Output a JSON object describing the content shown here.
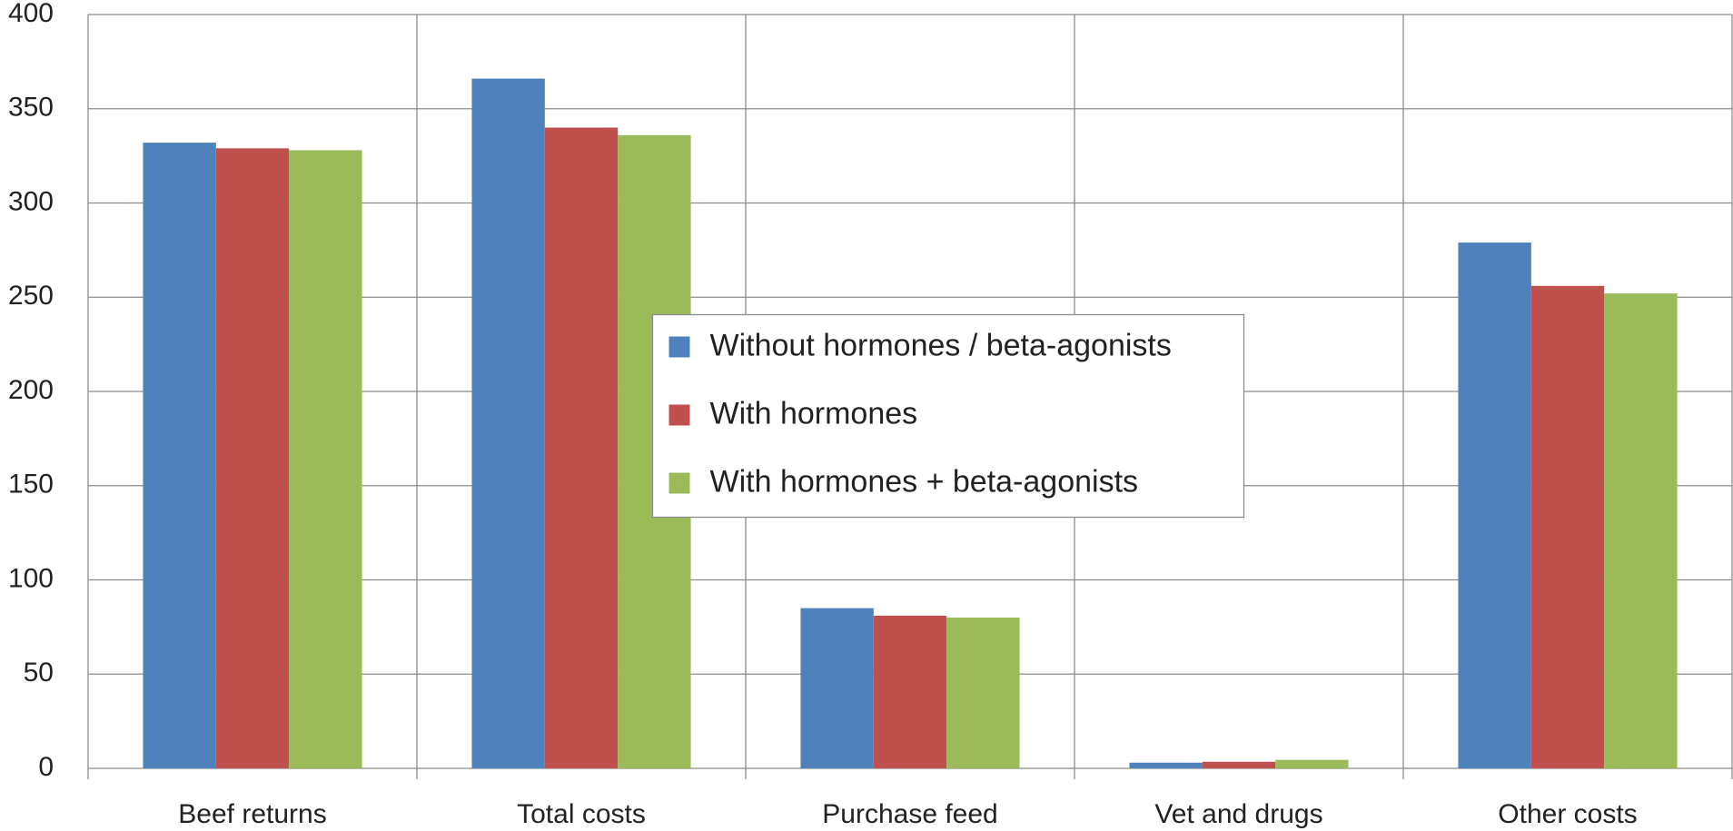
{
  "chart_data": {
    "type": "bar",
    "categories": [
      "Beef returns",
      "Total costs",
      "Purchase feed",
      "Vet and drugs",
      "Other costs"
    ],
    "series": [
      {
        "name": "Without hormones / beta-agonists",
        "color": "#4f81bd",
        "values": [
          332,
          366,
          85,
          3,
          279
        ]
      },
      {
        "name": "With hormones",
        "color": "#c0504d",
        "values": [
          329,
          340,
          81,
          3.5,
          256
        ]
      },
      {
        "name": "With hormones + beta-agonists",
        "color": "#9bbb59",
        "values": [
          328,
          336,
          80,
          4.5,
          252
        ]
      }
    ],
    "ylim": [
      0,
      400
    ],
    "yticks": [
      0,
      50,
      100,
      150,
      200,
      250,
      300,
      350,
      400
    ],
    "grid": true,
    "legend": "center"
  }
}
